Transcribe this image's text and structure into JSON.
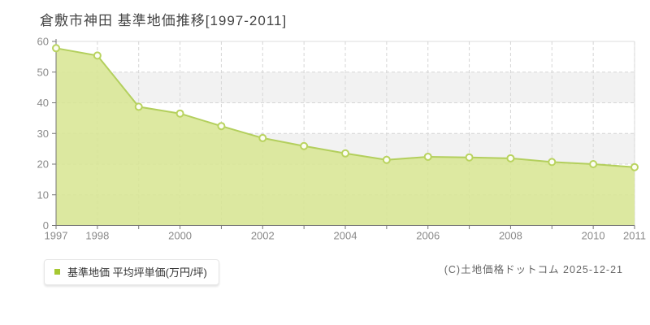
{
  "header": {
    "title": "倉敷市神田 基準地価推移[1997-2011]"
  },
  "legend": {
    "marker_color": "#a6c832",
    "label": "基準地価 平均坪単価(万円/坪)"
  },
  "footer": {
    "copyright": "(C)土地価格ドットコム 2025-12-21"
  },
  "chart_data": {
    "type": "area",
    "title": "倉敷市神田 基準地価推移[1997-2011]",
    "categories": [
      "1997",
      "1998",
      "1999",
      "2000",
      "2001",
      "2002",
      "2003",
      "2004",
      "2005",
      "2006",
      "2007",
      "2008",
      "2009",
      "2010",
      "2011"
    ],
    "series": [
      {
        "name": "基準地価 平均坪単価(万円/坪)",
        "values": [
          57.8,
          55.4,
          38.7,
          36.5,
          32.4,
          28.5,
          25.9,
          23.5,
          21.4,
          22.4,
          22.2,
          21.9,
          20.7,
          20.0,
          19.0
        ]
      }
    ],
    "xlabel": "",
    "ylabel": "",
    "ylim": [
      0,
      60
    ],
    "y_ticks": [
      0,
      10,
      20,
      30,
      40,
      50,
      60
    ],
    "x_tick_labels": [
      "1997",
      "1998",
      "2000",
      "2002",
      "2004",
      "2006",
      "2008",
      "2010",
      "2011"
    ],
    "grid": "dashed",
    "legend_position": "bottom-left",
    "colors": {
      "area_fill": "#d8e694",
      "line": "#b3cf5d",
      "marker_fill": "#fcfdf3",
      "marker_stroke": "#b9d35f",
      "grid_line": "#d6d6d6",
      "band_gray": "#f2f2f2",
      "band_white": "#ffffff",
      "plot_border": "#dcdcdc",
      "axis": "#767676",
      "tick_label": "#8a8a8a"
    }
  }
}
